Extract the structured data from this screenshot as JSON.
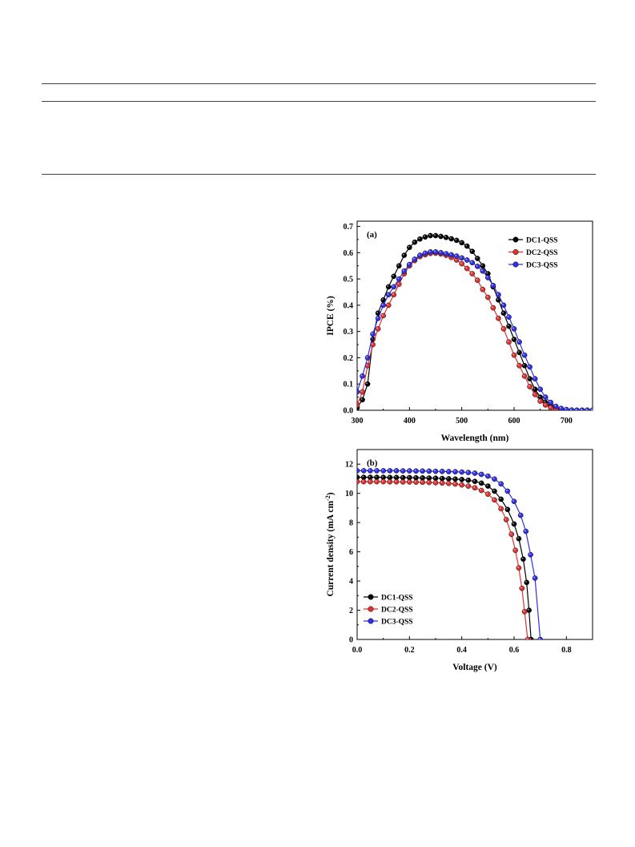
{
  "chart_data": [
    {
      "type": "line",
      "panel_label": "(a)",
      "xlabel": "Wavelength (nm)",
      "ylabel": "IPCE (%)",
      "xlim": [
        300,
        750
      ],
      "ylim": [
        0,
        0.72
      ],
      "xticks": [
        300,
        400,
        500,
        600,
        700
      ],
      "yticks": [
        0.0,
        0.1,
        0.2,
        0.3,
        0.4,
        0.5,
        0.6,
        0.7
      ],
      "legend_position": "top-right",
      "grid": false,
      "x": [
        300,
        310,
        320,
        330,
        340,
        350,
        360,
        370,
        380,
        390,
        400,
        410,
        420,
        430,
        440,
        450,
        460,
        470,
        480,
        490,
        500,
        510,
        520,
        530,
        540,
        550,
        560,
        570,
        580,
        590,
        600,
        610,
        620,
        630,
        640,
        650,
        660,
        670,
        680,
        690,
        700,
        710,
        720,
        730,
        740,
        750
      ],
      "series": [
        {
          "name": "DC1-QSS",
          "color": "#000000",
          "values": [
            0.01,
            0.04,
            0.1,
            0.27,
            0.37,
            0.42,
            0.47,
            0.51,
            0.55,
            0.59,
            0.62,
            0.64,
            0.652,
            0.66,
            0.665,
            0.665,
            0.662,
            0.658,
            0.653,
            0.647,
            0.638,
            0.625,
            0.605,
            0.578,
            0.55,
            0.52,
            0.47,
            0.42,
            0.37,
            0.32,
            0.27,
            0.22,
            0.17,
            0.12,
            0.08,
            0.05,
            0.03,
            0.015,
            0.007,
            0.003,
            0.001,
            0,
            0,
            0,
            0,
            0
          ]
        },
        {
          "name": "DC2-QSS",
          "color": "#e03030",
          "values": [
            0.02,
            0.07,
            0.17,
            0.25,
            0.31,
            0.36,
            0.4,
            0.44,
            0.48,
            0.52,
            0.55,
            0.57,
            0.585,
            0.592,
            0.597,
            0.598,
            0.595,
            0.59,
            0.582,
            0.572,
            0.558,
            0.54,
            0.52,
            0.495,
            0.46,
            0.43,
            0.39,
            0.35,
            0.31,
            0.26,
            0.21,
            0.17,
            0.13,
            0.09,
            0.06,
            0.035,
            0.02,
            0.01,
            0.005,
            0.002,
            0.001,
            0,
            0,
            0,
            0,
            0
          ]
        },
        {
          "name": "DC3-QSS",
          "color": "#2f2fe8",
          "values": [
            0.07,
            0.13,
            0.2,
            0.29,
            0.35,
            0.4,
            0.44,
            0.47,
            0.5,
            0.53,
            0.555,
            0.575,
            0.59,
            0.598,
            0.603,
            0.603,
            0.6,
            0.596,
            0.592,
            0.587,
            0.58,
            0.572,
            0.562,
            0.548,
            0.53,
            0.505,
            0.475,
            0.44,
            0.4,
            0.355,
            0.31,
            0.26,
            0.21,
            0.165,
            0.12,
            0.08,
            0.05,
            0.03,
            0.015,
            0.007,
            0.003,
            0.001,
            0,
            0,
            0,
            0
          ]
        }
      ]
    },
    {
      "type": "line",
      "panel_label": "(b)",
      "xlabel": "Voltage (V)",
      "ylabel": "Current density (mA cm",
      "ylabel_superscript": "-2",
      "ylabel_suffix": ")",
      "xlim": [
        0,
        0.9
      ],
      "ylim": [
        0,
        13
      ],
      "xticks": [
        0.0,
        0.2,
        0.4,
        0.6,
        0.8
      ],
      "yticks": [
        0,
        2,
        4,
        6,
        8,
        10,
        12
      ],
      "legend_position": "bottom-left",
      "grid": false,
      "series": [
        {
          "name": "DC1-QSS",
          "color": "#000000",
          "x": [
            0,
            0.025,
            0.05,
            0.075,
            0.1,
            0.125,
            0.15,
            0.175,
            0.2,
            0.225,
            0.25,
            0.275,
            0.3,
            0.325,
            0.35,
            0.375,
            0.4,
            0.425,
            0.45,
            0.475,
            0.5,
            0.525,
            0.55,
            0.575,
            0.6,
            0.618,
            0.635,
            0.648,
            0.657,
            0.665
          ],
          "values": [
            11.1,
            11.1,
            11.1,
            11.1,
            11.1,
            11.09,
            11.09,
            11.08,
            11.08,
            11.07,
            11.06,
            11.05,
            11.04,
            11.02,
            11.0,
            10.98,
            10.95,
            10.9,
            10.82,
            10.7,
            10.5,
            10.15,
            9.6,
            8.9,
            7.9,
            6.9,
            5.5,
            3.9,
            2.0,
            0
          ]
        },
        {
          "name": "DC2-QSS",
          "color": "#e03030",
          "x": [
            0,
            0.025,
            0.05,
            0.075,
            0.1,
            0.125,
            0.15,
            0.175,
            0.2,
            0.225,
            0.25,
            0.275,
            0.3,
            0.325,
            0.35,
            0.375,
            0.4,
            0.425,
            0.45,
            0.475,
            0.5,
            0.525,
            0.55,
            0.57,
            0.59,
            0.605,
            0.618,
            0.63,
            0.64,
            0.652
          ],
          "values": [
            10.8,
            10.8,
            10.8,
            10.8,
            10.8,
            10.79,
            10.79,
            10.78,
            10.78,
            10.77,
            10.76,
            10.75,
            10.73,
            10.71,
            10.68,
            10.64,
            10.58,
            10.5,
            10.38,
            10.2,
            9.95,
            9.55,
            8.95,
            8.2,
            7.2,
            6.1,
            4.9,
            3.5,
            1.9,
            0
          ]
        },
        {
          "name": "DC3-QSS",
          "color": "#2f2fe8",
          "x": [
            0,
            0.025,
            0.05,
            0.075,
            0.1,
            0.125,
            0.15,
            0.175,
            0.2,
            0.225,
            0.25,
            0.275,
            0.3,
            0.325,
            0.35,
            0.375,
            0.4,
            0.425,
            0.45,
            0.475,
            0.5,
            0.525,
            0.55,
            0.575,
            0.6,
            0.625,
            0.645,
            0.663,
            0.68,
            0.7
          ],
          "values": [
            11.55,
            11.55,
            11.55,
            11.55,
            11.55,
            11.55,
            11.55,
            11.54,
            11.54,
            11.53,
            11.53,
            11.52,
            11.51,
            11.5,
            11.49,
            11.48,
            11.46,
            11.43,
            11.38,
            11.3,
            11.18,
            10.98,
            10.65,
            10.15,
            9.45,
            8.5,
            7.4,
            5.8,
            4.2,
            0
          ]
        }
      ]
    }
  ]
}
